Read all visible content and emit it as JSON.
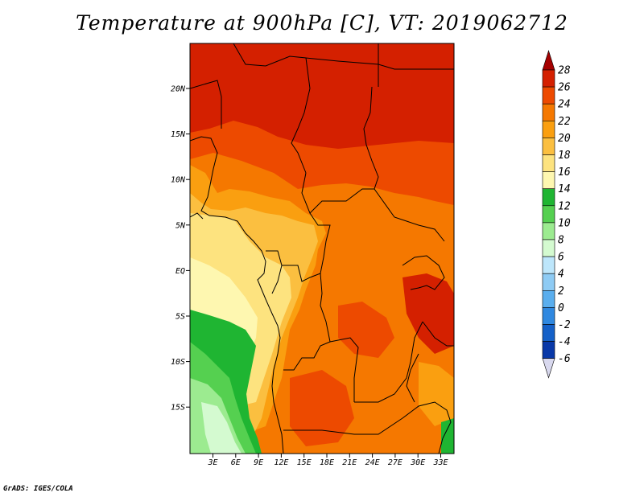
{
  "title": "Temperature at 900hPa [C], VT: 2019062712",
  "footer": "GrADS: IGES/COLA",
  "map": {
    "lat_labels": [
      "20N",
      "15N",
      "10N",
      "5N",
      "EQ",
      "5S",
      "10S",
      "15S"
    ],
    "lon_labels": [
      "3E",
      "6E",
      "9E",
      "12E",
      "15E",
      "18E",
      "21E",
      "24E",
      "27E",
      "30E",
      "33E"
    ]
  },
  "colorbar": {
    "labels": [
      "28",
      "26",
      "24",
      "22",
      "20",
      "18",
      "16",
      "14",
      "12",
      "10",
      "8",
      "6",
      "4",
      "2",
      "0",
      "-2",
      "-4",
      "-6"
    ],
    "colors": [
      "#a50000",
      "#d42000",
      "#ed4a00",
      "#f57800",
      "#fa9f10",
      "#fbbf40",
      "#fde37f",
      "#fef7b0",
      "#1fb532",
      "#55d050",
      "#9ceb90",
      "#d4fad0",
      "#bde6fb",
      "#8ecbf4",
      "#5aaeee",
      "#2f88e0",
      "#1460c8",
      "#0838a8",
      "#071e6e",
      "#d8d8ee"
    ]
  }
}
